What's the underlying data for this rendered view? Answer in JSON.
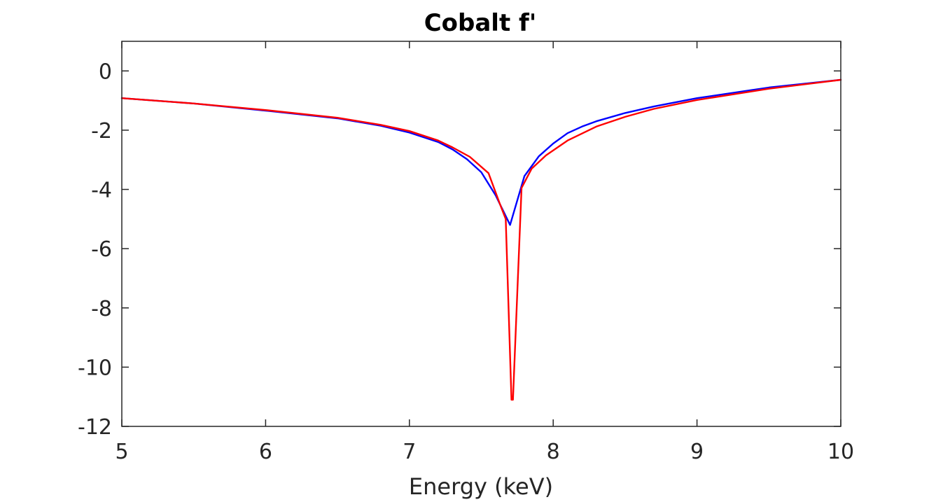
{
  "chart_data": {
    "type": "line",
    "title": "Cobalt f'",
    "xlabel": "Energy (keV)",
    "ylabel": "",
    "xlim": [
      5,
      10
    ],
    "ylim": [
      -12,
      1
    ],
    "xticks": [
      5,
      6,
      7,
      8,
      9,
      10
    ],
    "yticks": [
      0,
      -2,
      -4,
      -6,
      -8,
      -10,
      -12
    ],
    "xtick_labels": [
      "5",
      "6",
      "7",
      "8",
      "9",
      "10"
    ],
    "ytick_labels": [
      "0",
      "-2",
      "-4",
      "-6",
      "-8",
      "-10",
      "-12"
    ],
    "grid": false,
    "legend": "none",
    "series": [
      {
        "color": "#0000ff",
        "x": [
          5.0,
          5.5,
          6.0,
          6.5,
          6.8,
          7.0,
          7.2,
          7.3,
          7.4,
          7.5,
          7.6,
          7.65,
          7.7,
          7.8,
          7.9,
          8.0,
          8.1,
          8.2,
          8.3,
          8.5,
          8.7,
          9.0,
          9.5,
          10.0
        ],
        "y": [
          -0.92,
          -1.1,
          -1.34,
          -1.6,
          -1.85,
          -2.08,
          -2.4,
          -2.65,
          -2.98,
          -3.42,
          -4.2,
          -4.7,
          -5.2,
          -3.55,
          -2.88,
          -2.45,
          -2.1,
          -1.88,
          -1.7,
          -1.42,
          -1.2,
          -0.92,
          -0.56,
          -0.3
        ]
      },
      {
        "color": "#ff0000",
        "x": [
          5.0,
          5.5,
          6.0,
          6.5,
          6.8,
          7.0,
          7.2,
          7.3,
          7.42,
          7.55,
          7.63,
          7.67,
          7.71,
          7.72,
          7.78,
          7.85,
          7.95,
          8.1,
          8.3,
          8.5,
          8.7,
          9.0,
          9.5,
          10.0
        ],
        "y": [
          -0.92,
          -1.1,
          -1.32,
          -1.58,
          -1.82,
          -2.03,
          -2.35,
          -2.58,
          -2.9,
          -3.45,
          -4.5,
          -5.0,
          -11.1,
          -11.1,
          -3.95,
          -3.3,
          -2.85,
          -2.35,
          -1.88,
          -1.55,
          -1.28,
          -0.98,
          -0.6,
          -0.3
        ]
      }
    ]
  }
}
